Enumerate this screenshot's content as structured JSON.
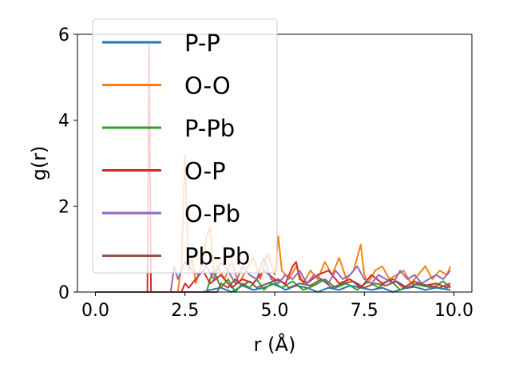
{
  "chart_data": {
    "type": "line",
    "title": "",
    "xlabel": "r (Å)",
    "ylabel": "g(r)",
    "xlim": [
      -0.5,
      10.5
    ],
    "ylim": [
      0,
      6
    ],
    "xticks": [
      "0.0",
      "2.5",
      "5.0",
      "7.5",
      "10.0"
    ],
    "xtick_values": [
      0,
      2.5,
      5.0,
      7.5,
      10.0
    ],
    "yticks": [
      "0",
      "2",
      "4",
      "6"
    ],
    "ytick_values": [
      0,
      2,
      4,
      6
    ],
    "grid": false,
    "legend_position": "upper-left",
    "series": [
      {
        "name": "P-P",
        "color": "#1f77b4",
        "x": [
          0,
          3.0,
          3.2,
          3.5,
          3.8,
          4.1,
          4.4,
          4.7,
          5.0,
          5.3,
          5.6,
          5.9,
          6.2,
          6.5,
          6.8,
          7.1,
          7.4,
          7.7,
          8.0,
          8.3,
          8.6,
          8.9,
          9.2,
          9.5,
          9.9
        ],
        "y": [
          0,
          0,
          0.05,
          0.1,
          0.0,
          0.15,
          0.05,
          0.1,
          0.2,
          0.05,
          0.15,
          0.1,
          0.0,
          0.1,
          0.05,
          0.15,
          0.1,
          0.05,
          0.1,
          0.0,
          0.08,
          0.12,
          0.05,
          0.1,
          0.05
        ]
      },
      {
        "name": "O-O",
        "color": "#ff7f0e",
        "x": [
          0,
          2.3,
          2.4,
          2.5,
          2.6,
          2.7,
          2.8,
          2.9,
          3.0,
          3.1,
          3.2,
          3.3,
          3.4,
          3.6,
          3.8,
          4.0,
          4.2,
          4.4,
          4.6,
          4.8,
          5.0,
          5.1,
          5.2,
          5.4,
          5.6,
          5.8,
          6.0,
          6.2,
          6.4,
          6.6,
          6.8,
          7.0,
          7.2,
          7.4,
          7.5,
          7.6,
          7.8,
          8.0,
          8.2,
          8.4,
          8.6,
          8.8,
          9.0,
          9.2,
          9.4,
          9.6,
          9.8,
          9.9
        ],
        "y": [
          0,
          0,
          0.6,
          3.2,
          0.5,
          0.8,
          0.2,
          0.5,
          0.7,
          1.3,
          1.5,
          0.4,
          0.6,
          0.3,
          0.7,
          0.2,
          0.5,
          0.8,
          0.3,
          0.9,
          0.4,
          1.3,
          0.5,
          0.3,
          0.6,
          0.2,
          0.5,
          0.3,
          0.7,
          0.4,
          0.8,
          0.3,
          0.5,
          1.1,
          0.4,
          0.2,
          0.5,
          0.6,
          0.3,
          0.4,
          0.5,
          0.2,
          0.4,
          0.6,
          0.3,
          0.5,
          0.4,
          0.6
        ]
      },
      {
        "name": "P-Pb",
        "color": "#2ca02c",
        "x": [
          0,
          3.1,
          3.2,
          3.3,
          3.5,
          3.7,
          3.9,
          4.1,
          4.3,
          4.5,
          4.7,
          4.9,
          5.2,
          5.5,
          5.8,
          6.1,
          6.4,
          6.7,
          7.0,
          7.3,
          7.6,
          7.9,
          8.2,
          8.5,
          8.8,
          9.1,
          9.4,
          9.7,
          9.9
        ],
        "y": [
          0,
          0,
          0.3,
          0.5,
          0.1,
          0.3,
          0.0,
          0.2,
          0.1,
          0.3,
          0.05,
          0.2,
          0.1,
          0.25,
          0.05,
          0.15,
          0.3,
          0.1,
          0.2,
          0.05,
          0.25,
          0.1,
          0.3,
          0.05,
          0.2,
          0.15,
          0.1,
          0.25,
          0.1
        ]
      },
      {
        "name": "O-P",
        "color": "#d62728",
        "x": [
          0,
          1.45,
          1.5,
          1.55,
          2.4,
          2.5,
          2.6,
          2.8,
          3.0,
          3.2,
          3.5,
          3.8,
          4.1,
          4.4,
          4.7,
          5.0,
          5.3,
          5.5,
          5.6,
          5.7,
          5.9,
          6.2,
          6.5,
          6.8,
          7.1,
          7.4,
          7.7,
          8.0,
          8.3,
          8.6,
          8.9,
          9.2,
          9.5,
          9.8,
          9.9
        ],
        "y": [
          0,
          0,
          5.8,
          0,
          0,
          0.2,
          0.1,
          0.3,
          0.5,
          0.2,
          0.4,
          0.1,
          0.3,
          0.2,
          0.5,
          0.3,
          0.2,
          0.6,
          0.7,
          0.3,
          0.2,
          0.4,
          0.5,
          0.2,
          0.3,
          0.1,
          0.4,
          0.2,
          0.3,
          0.1,
          0.25,
          0.15,
          0.2,
          0.1,
          0.15
        ]
      },
      {
        "name": "O-Pb",
        "color": "#9467bd",
        "x": [
          0,
          2.1,
          2.2,
          2.3,
          2.5,
          2.7,
          2.9,
          3.1,
          3.3,
          3.5,
          3.7,
          3.9,
          4.1,
          4.3,
          4.5,
          4.7,
          4.9,
          5.1,
          5.3,
          5.5,
          5.7,
          5.9,
          6.1,
          6.3,
          6.5,
          6.7,
          6.9,
          7.1,
          7.3,
          7.5,
          7.7,
          7.9,
          8.1,
          8.3,
          8.5,
          8.7,
          8.9,
          9.1,
          9.3,
          9.5,
          9.7,
          9.9
        ],
        "y": [
          0,
          0,
          0.6,
          0.3,
          0.7,
          0.5,
          0.4,
          0.6,
          0.3,
          0.7,
          0.5,
          0.2,
          0.6,
          0.4,
          0.3,
          0.8,
          0.3,
          0.2,
          0.4,
          0.3,
          0.5,
          0.2,
          0.4,
          0.3,
          0.2,
          0.5,
          0.3,
          0.4,
          0.6,
          0.3,
          0.2,
          0.4,
          0.3,
          0.2,
          0.5,
          0.3,
          0.4,
          0.2,
          0.3,
          0.4,
          0.3,
          0.5
        ]
      },
      {
        "name": "Pb-Pb",
        "color": "#8c564b",
        "x": [
          0,
          3.4,
          3.5,
          3.7,
          3.9,
          4.1,
          4.3,
          4.5,
          4.8,
          5.1,
          5.4,
          5.7,
          6.0,
          6.3,
          6.6,
          6.9,
          7.2,
          7.5,
          7.8,
          8.1,
          8.4,
          8.7,
          9.0,
          9.3,
          9.6,
          9.9
        ],
        "y": [
          0,
          0,
          0.2,
          0.1,
          0.3,
          0.15,
          0.25,
          0.1,
          0.2,
          0.3,
          0.1,
          0.2,
          0.15,
          0.3,
          0.1,
          0.2,
          0.25,
          0.1,
          0.2,
          0.15,
          0.25,
          0.1,
          0.2,
          0.15,
          0.1,
          0.2
        ]
      }
    ]
  }
}
